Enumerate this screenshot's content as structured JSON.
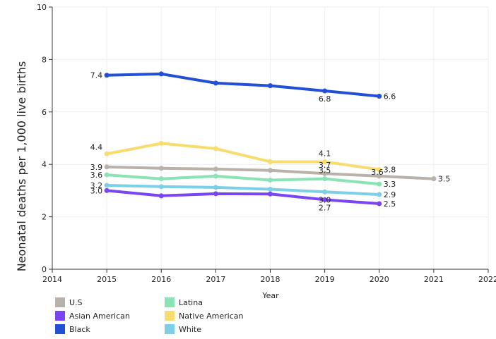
{
  "chart_data": {
    "type": "line",
    "xlabel": "Year",
    "ylabel": "Neonatal deaths per 1,000 live births",
    "xlim": [
      2014,
      2022
    ],
    "ylim": [
      0,
      10
    ],
    "x_ticks": [
      "2014",
      "2015",
      "2016",
      "2017",
      "2018",
      "2019",
      "2020",
      "2021",
      "2022"
    ],
    "y_ticks": [
      "0",
      "2",
      "4",
      "6",
      "8",
      "10"
    ],
    "legend_position": "bottom-left",
    "grid": true,
    "series": [
      {
        "name": "Black",
        "color": "#2150d6",
        "points": [
          [
            2015,
            7.4
          ],
          [
            2016,
            7.45
          ],
          [
            2017,
            7.1
          ],
          [
            2018,
            7.0
          ],
          [
            2019,
            6.8
          ],
          [
            2020,
            6.6
          ]
        ],
        "labels": [
          {
            "x": 2015,
            "text": "7.4",
            "pos": "left"
          },
          {
            "x": 2019,
            "text": "6.8",
            "pos": "below"
          },
          {
            "x": 2020,
            "text": "6.6",
            "pos": "right"
          }
        ]
      },
      {
        "name": "Native American",
        "color": "#f8dc6e",
        "points": [
          [
            2015,
            4.4
          ],
          [
            2016,
            4.8
          ],
          [
            2017,
            4.6
          ],
          [
            2018,
            4.1
          ],
          [
            2019,
            4.1
          ],
          [
            2020,
            3.8
          ]
        ],
        "labels": [
          {
            "x": 2015,
            "text": "4.4",
            "pos": "above-left"
          },
          {
            "x": 2019,
            "text": "4.1",
            "pos": "above"
          },
          {
            "x": 2020,
            "text": "3.8",
            "pos": "right"
          }
        ]
      },
      {
        "name": "U.S",
        "color": "#b8b2ab",
        "points": [
          [
            2015,
            3.9
          ],
          [
            2016,
            3.85
          ],
          [
            2017,
            3.82
          ],
          [
            2018,
            3.77
          ],
          [
            2019,
            3.65
          ],
          [
            2020,
            3.55
          ],
          [
            2021,
            3.45
          ]
        ],
        "labels": [
          {
            "x": 2015,
            "text": "3.9",
            "pos": "left"
          },
          {
            "x": 2019,
            "text": "3.7",
            "pos": "above"
          },
          {
            "x": 2020,
            "text": "3.6",
            "pos": "below-left"
          },
          {
            "x": 2021,
            "text": "3.5",
            "pos": "right"
          }
        ]
      },
      {
        "name": "Latina",
        "color": "#8ae3b4",
        "points": [
          [
            2015,
            3.6
          ],
          [
            2016,
            3.45
          ],
          [
            2017,
            3.55
          ],
          [
            2018,
            3.4
          ],
          [
            2019,
            3.45
          ],
          [
            2020,
            3.25
          ]
        ],
        "labels": [
          {
            "x": 2015,
            "text": "3.6",
            "pos": "left"
          },
          {
            "x": 2019,
            "text": "3.5",
            "pos": "above"
          },
          {
            "x": 2020,
            "text": "3.3",
            "pos": "right"
          }
        ]
      },
      {
        "name": "White",
        "color": "#7dcfe8",
        "points": [
          [
            2015,
            3.2
          ],
          [
            2016,
            3.15
          ],
          [
            2017,
            3.12
          ],
          [
            2018,
            3.05
          ],
          [
            2019,
            2.95
          ],
          [
            2020,
            2.85
          ]
        ],
        "labels": [
          {
            "x": 2015,
            "text": "3.2",
            "pos": "left"
          },
          {
            "x": 2019,
            "text": "3.0",
            "pos": "below"
          },
          {
            "x": 2020,
            "text": "2.9",
            "pos": "right"
          }
        ]
      },
      {
        "name": "Asian American",
        "color": "#7a45f2",
        "points": [
          [
            2015,
            3.0
          ],
          [
            2016,
            2.8
          ],
          [
            2017,
            2.88
          ],
          [
            2018,
            2.87
          ],
          [
            2019,
            2.65
          ],
          [
            2020,
            2.5
          ]
        ],
        "labels": [
          {
            "x": 2015,
            "text": "3.0",
            "pos": "left"
          },
          {
            "x": 2019,
            "text": "2.7",
            "pos": "below"
          },
          {
            "x": 2020,
            "text": "2.5",
            "pos": "right"
          }
        ]
      }
    ]
  },
  "legend": [
    {
      "name": "U.S",
      "color": "#b8b2ab"
    },
    {
      "name": "Asian American",
      "color": "#7a45f2"
    },
    {
      "name": "Black",
      "color": "#2150d6"
    },
    {
      "name": "Latina",
      "color": "#8ae3b4"
    },
    {
      "name": "Native American",
      "color": "#f8dc6e"
    },
    {
      "name": "White",
      "color": "#7dcfe8"
    }
  ]
}
